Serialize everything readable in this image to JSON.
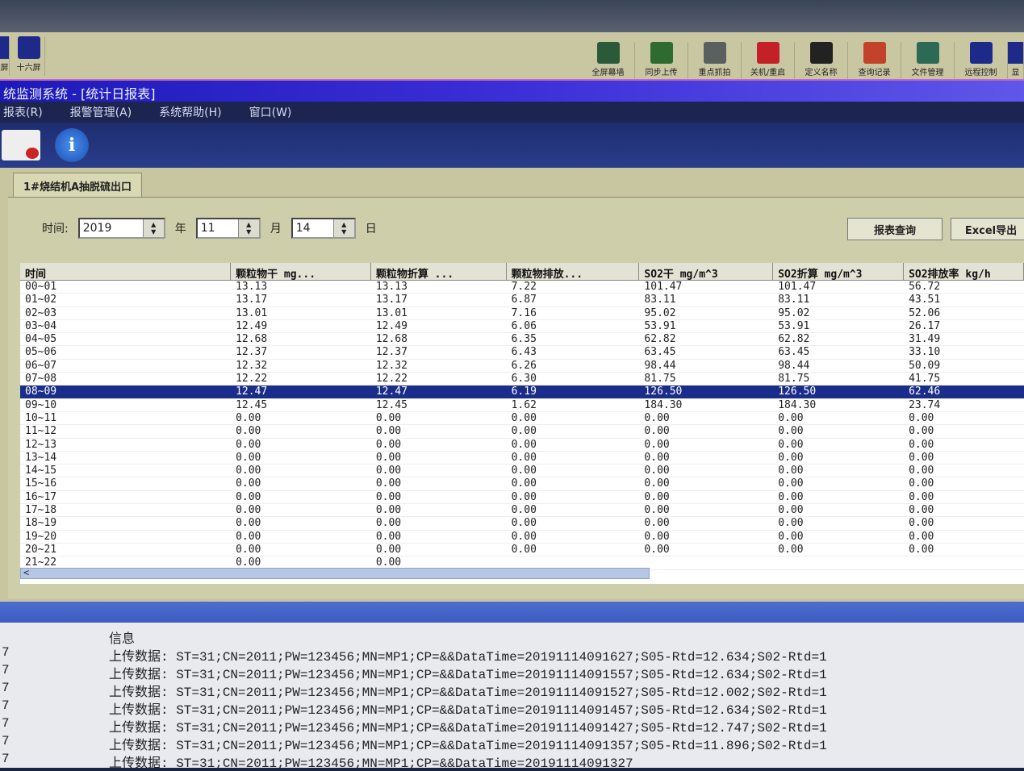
{
  "toolbar_left": [
    {
      "label": "屏"
    },
    {
      "label": "十六屏"
    }
  ],
  "toolbar_right": [
    {
      "label": "全屏幕墙",
      "color": "#2a5a3a"
    },
    {
      "label": "同步上传",
      "color": "#2e6b30"
    },
    {
      "label": "重点抓拍",
      "color": "#5a6060"
    },
    {
      "label": "关机/重启",
      "color": "#c3202a"
    },
    {
      "label": "定义名称",
      "color": "#222222"
    },
    {
      "label": "查询记录",
      "color": "#c2432a"
    },
    {
      "label": "文件管理",
      "color": "#2d6a55"
    },
    {
      "label": "远程控制",
      "color": "#1c2a8a"
    },
    {
      "label": "显"
    }
  ],
  "title": "统监测系统 - [统计日报表]",
  "menu": [
    "报表(R)",
    "报警管理(A)",
    "系统帮助(H)",
    "窗口(W)"
  ],
  "tab": "1#烧结机A抽脱硫出口",
  "date": {
    "label": "时间:",
    "year": "2019",
    "year_unit": "年",
    "month": "11",
    "month_unit": "月",
    "day": "14",
    "day_unit": "日"
  },
  "buttons": {
    "query": "报表查询",
    "excel": "Excel导出"
  },
  "table": {
    "columns": [
      "时间",
      "颗粒物干 mg...",
      "颗粒物折算 ...",
      "颗粒物排放...",
      "SO2干 mg/m^3",
      "SO2折算 mg/m^3",
      "SO2排放率 kg/h"
    ],
    "selected_row": 8,
    "rows": [
      [
        "00~01",
        "13.13",
        "13.13",
        "7.22",
        "101.47",
        "101.47",
        "56.72"
      ],
      [
        "01~02",
        "13.17",
        "13.17",
        "6.87",
        "83.11",
        "83.11",
        "43.51"
      ],
      [
        "02~03",
        "13.01",
        "13.01",
        "7.16",
        "95.02",
        "95.02",
        "52.06"
      ],
      [
        "03~04",
        "12.49",
        "12.49",
        "6.06",
        "53.91",
        "53.91",
        "26.17"
      ],
      [
        "04~05",
        "12.68",
        "12.68",
        "6.35",
        "62.82",
        "62.82",
        "31.49"
      ],
      [
        "05~06",
        "12.37",
        "12.37",
        "6.43",
        "63.45",
        "63.45",
        "33.10"
      ],
      [
        "06~07",
        "12.32",
        "12.32",
        "6.26",
        "98.44",
        "98.44",
        "50.09"
      ],
      [
        "07~08",
        "12.22",
        "12.22",
        "6.30",
        "81.75",
        "81.75",
        "41.75"
      ],
      [
        "08~09",
        "12.47",
        "12.47",
        "6.19",
        "126.50",
        "126.50",
        "62.46"
      ],
      [
        "09~10",
        "12.45",
        "12.45",
        "1.62",
        "184.30",
        "184.30",
        "23.74"
      ],
      [
        "10~11",
        "0.00",
        "0.00",
        "0.00",
        "0.00",
        "0.00",
        "0.00"
      ],
      [
        "11~12",
        "0.00",
        "0.00",
        "0.00",
        "0.00",
        "0.00",
        "0.00"
      ],
      [
        "12~13",
        "0.00",
        "0.00",
        "0.00",
        "0.00",
        "0.00",
        "0.00"
      ],
      [
        "13~14",
        "0.00",
        "0.00",
        "0.00",
        "0.00",
        "0.00",
        "0.00"
      ],
      [
        "14~15",
        "0.00",
        "0.00",
        "0.00",
        "0.00",
        "0.00",
        "0.00"
      ],
      [
        "15~16",
        "0.00",
        "0.00",
        "0.00",
        "0.00",
        "0.00",
        "0.00"
      ],
      [
        "16~17",
        "0.00",
        "0.00",
        "0.00",
        "0.00",
        "0.00",
        "0.00"
      ],
      [
        "17~18",
        "0.00",
        "0.00",
        "0.00",
        "0.00",
        "0.00",
        "0.00"
      ],
      [
        "18~19",
        "0.00",
        "0.00",
        "0.00",
        "0.00",
        "0.00",
        "0.00"
      ],
      [
        "19~20",
        "0.00",
        "0.00",
        "0.00",
        "0.00",
        "0.00",
        "0.00"
      ],
      [
        "20~21",
        "0.00",
        "0.00",
        "0.00",
        "0.00",
        "0.00",
        "0.00"
      ],
      [
        "21~22",
        "0.00",
        "0.00",
        "",
        "",
        "",
        ""
      ]
    ]
  },
  "log": {
    "header": "信息",
    "lines": [
      {
        "n": "7",
        "text": "上传数据: ST=31;CN=2011;PW=123456;MN=MP1;CP=&&DataTime=20191114091627;S05-Rtd=12.634;S02-Rtd=1"
      },
      {
        "n": "7",
        "text": "上传数据: ST=31;CN=2011;PW=123456;MN=MP1;CP=&&DataTime=20191114091557;S05-Rtd=12.634;S02-Rtd=1"
      },
      {
        "n": "7",
        "text": "上传数据: ST=31;CN=2011;PW=123456;MN=MP1;CP=&&DataTime=20191114091527;S05-Rtd=12.002;S02-Rtd=1"
      },
      {
        "n": "7",
        "text": "上传数据: ST=31;CN=2011;PW=123456;MN=MP1;CP=&&DataTime=20191114091457;S05-Rtd=12.634;S02-Rtd=1"
      },
      {
        "n": "7",
        "text": "上传数据: ST=31;CN=2011;PW=123456;MN=MP1;CP=&&DataTime=20191114091427;S05-Rtd=12.747;S02-Rtd=1"
      },
      {
        "n": "7",
        "text": "上传数据: ST=31;CN=2011;PW=123456;MN=MP1;CP=&&DataTime=20191114091357;S05-Rtd=11.896;S02-Rtd=1"
      },
      {
        "n": "7",
        "text": "上传数据: ST=31;CN=2011;PW=123456;MN=MP1;CP=&&DataTime=20191114091327"
      }
    ]
  }
}
